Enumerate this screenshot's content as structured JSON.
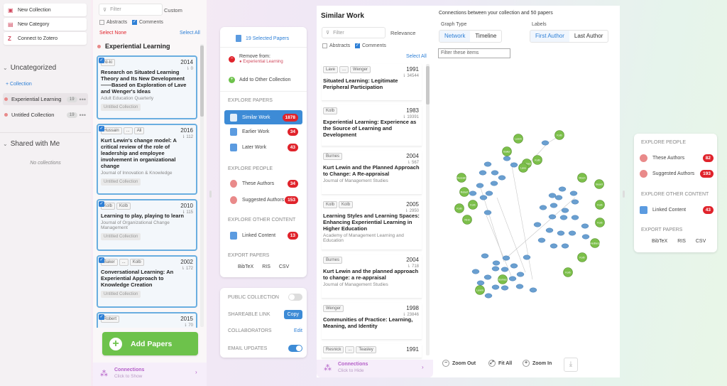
{
  "left": {
    "buttons": [
      {
        "icon": "folder-plus-icon",
        "label": "New Collection"
      },
      {
        "icon": "category-icon",
        "label": "New Category"
      },
      {
        "icon": "zotero-icon",
        "label": "Connect to Zotero"
      }
    ],
    "uncategorized": {
      "title": "Uncategorized",
      "add_label": "+ Collection",
      "collections": [
        {
          "name": "Experiential Learning",
          "count": "19"
        },
        {
          "name": "Untitled Collection",
          "count": "19"
        }
      ]
    },
    "shared": {
      "title": "Shared with Me",
      "empty": "No collections"
    }
  },
  "papers": {
    "filter_placeholder": "Filter",
    "sort_label": "Custom",
    "abstracts_label": "Abstracts",
    "comments_label": "Comments",
    "select_none": "Select None",
    "select_all": "Select All",
    "collection_title": "Experiential Learning",
    "items": [
      {
        "authors": [
          "Ni-ki"
        ],
        "year": "2014",
        "cites": "0",
        "title": "Research on Situated Learning Theory and Its New Development ——Based on Exploration of Lave and Wenger's Ideas",
        "journal": "Adult Education Quarterly",
        "tag": "Untitled Collection"
      },
      {
        "authors": [
          "Hussain",
          "...",
          "Ali"
        ],
        "year": "2016",
        "cites": "112",
        "title": "Kurt Lewin's change model: A critical review of the role of leadership and employee involvement in organizational change",
        "journal": "Journal of Innovation & Knowledge",
        "tag": "Untitled Collection"
      },
      {
        "authors": [
          "Kolb",
          "Kolb"
        ],
        "year": "2010",
        "cites": "115",
        "title": "Learning to play, playing to learn",
        "journal": "Journal of Organizational Change Management",
        "tag": "Untitled Collection"
      },
      {
        "authors": [
          "Baker",
          "...",
          "Kolb"
        ],
        "year": "2002",
        "cites": "172",
        "title": "Conversational Learning: An Experiential Approach to Knowledge Creation",
        "journal": "",
        "tag": "Untitled Collection"
      },
      {
        "authors": [
          "Robert"
        ],
        "year": "2015",
        "cites": "70",
        "title": "",
        "journal": "",
        "tag": ""
      }
    ],
    "add_button": "Add Papers",
    "connections_title": "Connections",
    "connections_sub": "Click to Show"
  },
  "actions": {
    "selected": "19 Selected Papers",
    "remove_label": "Remove from:",
    "remove_sub": "● Experiential Learning",
    "add_other": "Add to Other Collection",
    "explore_papers": "EXPLORE PAPERS",
    "papers": [
      {
        "label": "Similar Work",
        "count": "1878",
        "selected": true
      },
      {
        "label": "Earlier Work",
        "count": "34"
      },
      {
        "label": "Later Work",
        "count": "43"
      }
    ],
    "explore_people": "EXPLORE PEOPLE",
    "people": [
      {
        "label": "These Authors",
        "count": "34"
      },
      {
        "label": "Suggested Authors",
        "count": "153"
      }
    ],
    "explore_other": "EXPLORE OTHER CONTENT",
    "other": [
      {
        "label": "Linked Content",
        "count": "13"
      }
    ],
    "export": "EXPORT PAPERS",
    "export_formats": [
      "BibTeX",
      "RIS",
      "CSV"
    ]
  },
  "settings": {
    "public": "PUBLIC COLLECTION",
    "shareable": "SHAREABLE LINK",
    "copy": "Copy",
    "collaborators": "COLLABORATORS",
    "edit": "Edit",
    "email": "EMAIL UPDATES"
  },
  "similar": {
    "title": "Similar Work",
    "filter_placeholder": "Filter",
    "sort_label": "Relevance",
    "abstracts_label": "Abstracts",
    "comments_label": "Comments",
    "select_all": "Select All",
    "items": [
      {
        "authors": [
          "Lave",
          "...",
          "Wenger"
        ],
        "year": "1991",
        "cites": "34544",
        "title": "Situated Learning: Legitimate Peripheral Participation",
        "journal": ""
      },
      {
        "authors": [
          "Kolb"
        ],
        "year": "1983",
        "cites": "19391",
        "title": "Experiential Learning: Experience as the Source of Learning and Development",
        "journal": ""
      },
      {
        "authors": [
          "Burnes"
        ],
        "year": "2004",
        "cites": "567",
        "title": "Kurt Lewin and the Planned Approach to Change: A Re-appraisal",
        "journal": "Journal of Management Studies"
      },
      {
        "authors": [
          "Kolb",
          "Kolb"
        ],
        "year": "2005",
        "cites": "2950",
        "title": "Learning Styles and Learning Spaces: Enhancing Experiential Learning in Higher Education",
        "journal": "Academy of Management Learning and Education"
      },
      {
        "authors": [
          "Burnes"
        ],
        "year": "2004",
        "cites": "718",
        "title": "Kurt Lewin and the planned approach to change: a re-appraisal",
        "journal": "Journal of Management Studies"
      },
      {
        "authors": [
          "Wenger"
        ],
        "year": "1998",
        "cites": "23846",
        "title": "Communities of Practice: Learning, Meaning, and Identity",
        "journal": ""
      },
      {
        "authors": [
          "Resnick",
          "...",
          "Teasley"
        ],
        "year": "1991",
        "cites": "",
        "title": "",
        "journal": ""
      }
    ],
    "connections_title": "Connections",
    "connections_sub": "Click to Hide"
  },
  "graph": {
    "heading": "Connections between your collection and 50 papers",
    "graph_type_label": "Graph Type",
    "graph_types": [
      "Network",
      "Timeline"
    ],
    "labels_label": "Labels",
    "label_types": [
      "First Author",
      "Last Author"
    ],
    "filter_placeholder": "Filter these items",
    "zoom_out": "Zoom Out",
    "fit_all": "Fit All",
    "zoom_in": "Zoom In",
    "green_nodes": [
      {
        "label": "Lewin"
      },
      {
        "label": "Kolb"
      },
      {
        "label": "Baker"
      },
      {
        "label": "Burnes"
      },
      {
        "label": "Kolb"
      },
      {
        "label": "Lave"
      },
      {
        "label": "Hussain"
      },
      {
        "label": "Robert"
      },
      {
        "label": "Kolb"
      },
      {
        "label": "Kolb"
      },
      {
        "label": "Ni-ki"
      },
      {
        "label": "Moon"
      },
      {
        "label": "Beard"
      },
      {
        "label": "Kolb"
      },
      {
        "label": "Kolb"
      },
      {
        "label": "Hedberg"
      },
      {
        "label": "Kolb"
      },
      {
        "label": "Kolb"
      },
      {
        "label": "Burnes"
      },
      {
        "label": "Lewin"
      }
    ]
  },
  "rpanel": {
    "explore_people": "EXPLORE PEOPLE",
    "people": [
      {
        "label": "These Authors",
        "count": "82"
      },
      {
        "label": "Suggested Authors",
        "count": "193"
      }
    ],
    "explore_other": "EXPLORE OTHER CONTENT",
    "other": [
      {
        "label": "Linked Content",
        "count": "43"
      }
    ],
    "export": "EXPORT PAPERS",
    "export_formats": [
      "BibTeX",
      "RIS",
      "CSV"
    ]
  },
  "colors": {
    "accent": "#2d7fd6",
    "badge": "#e0232b",
    "green_node": "#7cbf4a",
    "blue_node": "#6a9fd0",
    "add_button": "#6dc24b"
  }
}
